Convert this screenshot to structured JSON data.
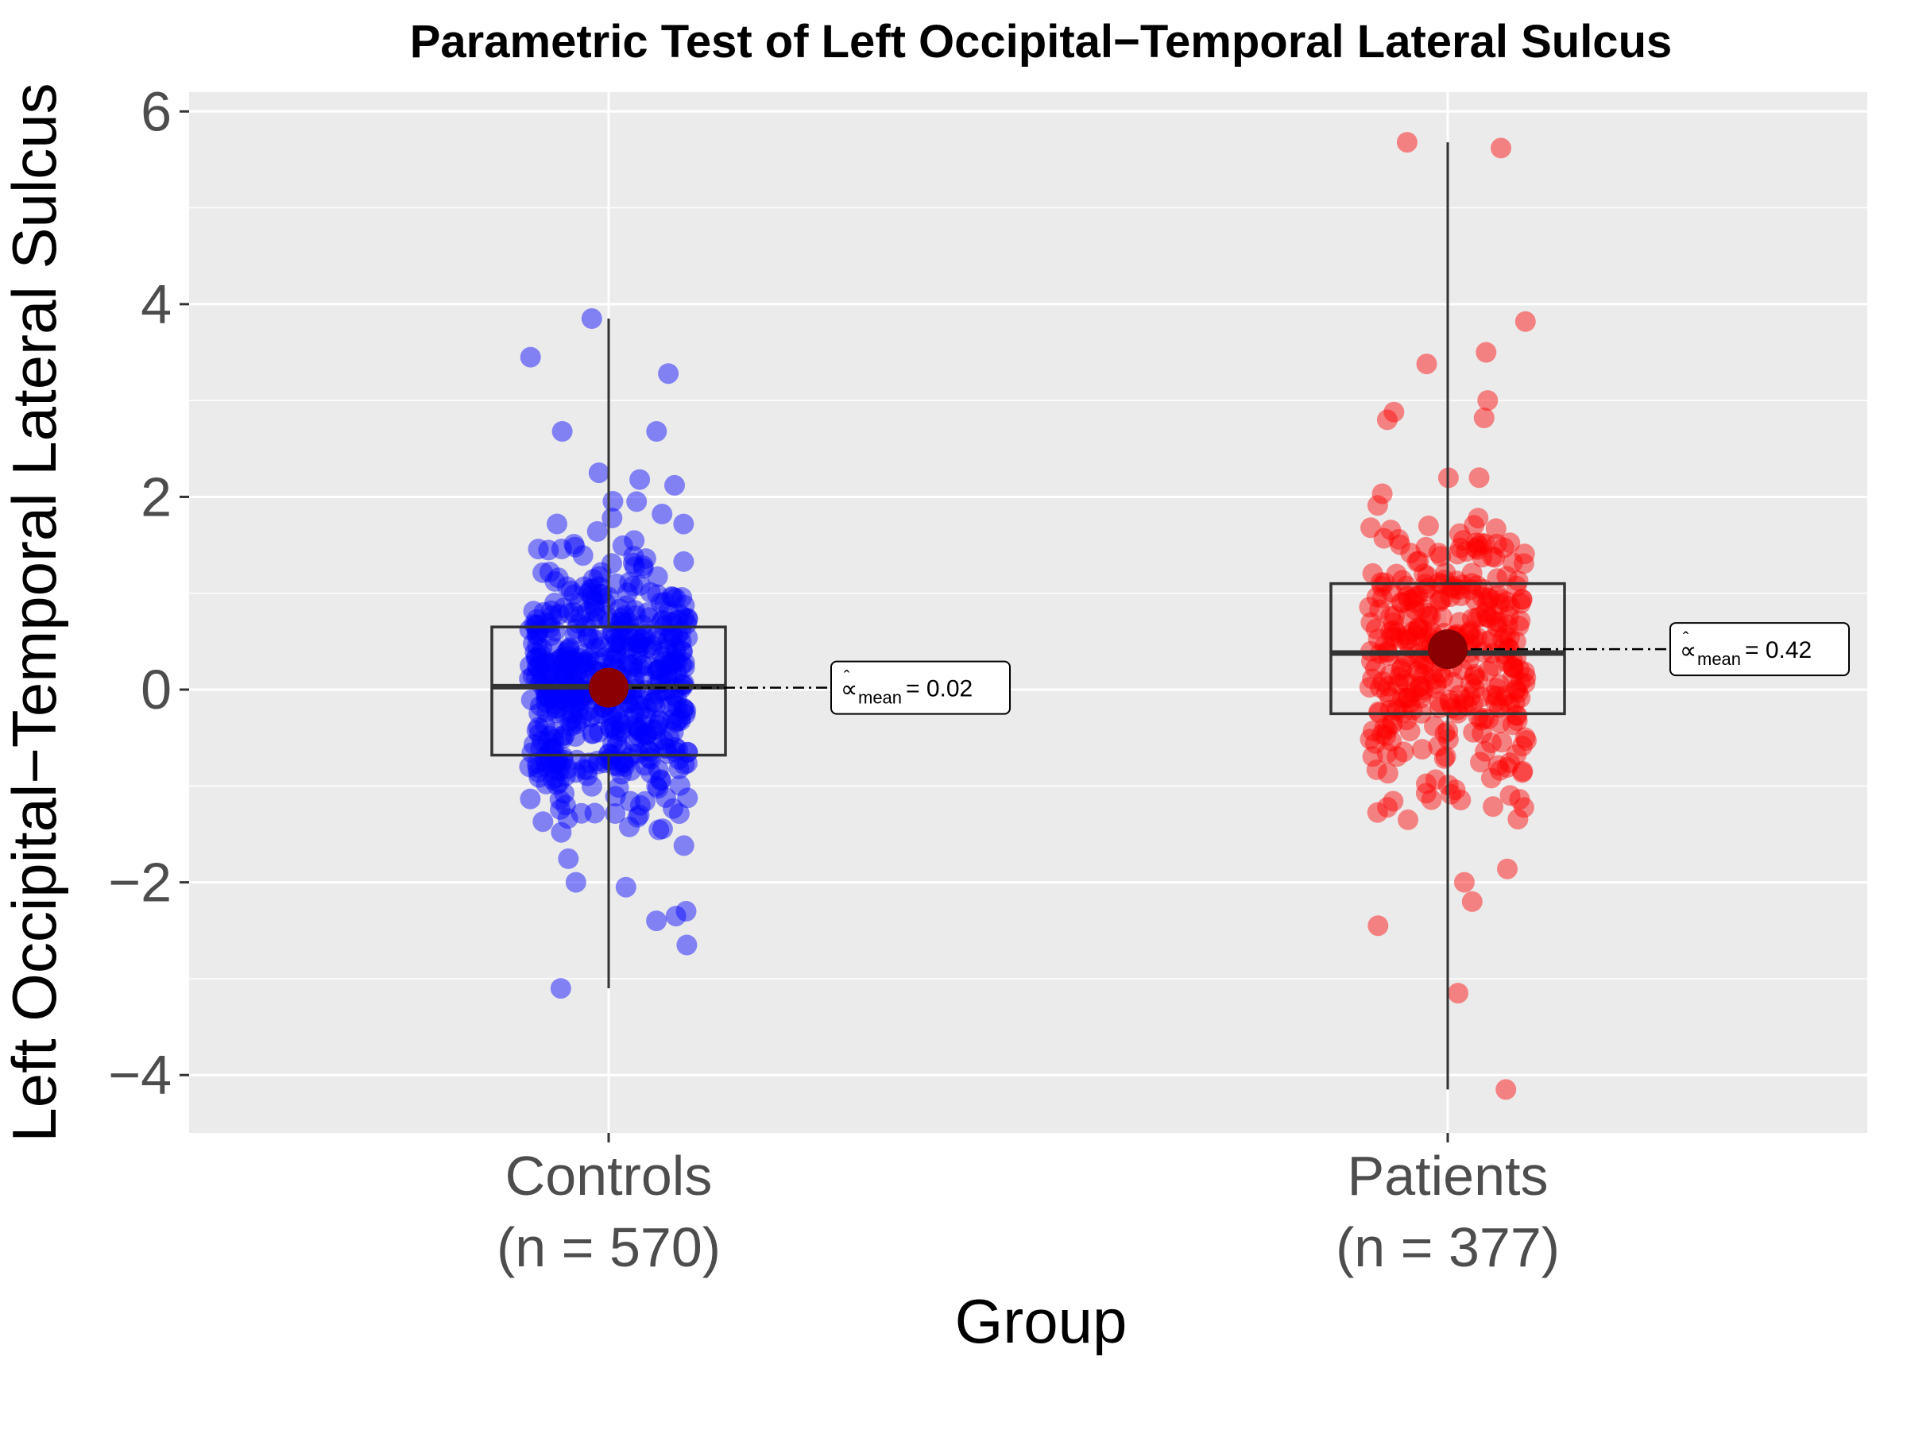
{
  "chart_data": {
    "type": "scatter",
    "title": "Parametric Test of Left Occipital−Temporal Lateral Sulcus",
    "xlabel": "Group",
    "ylabel": "Left Occipital−Temporal Lateral Sulcus",
    "ylim": [
      -4.6,
      6.2
    ],
    "yticks": [
      -4,
      -2,
      0,
      2,
      4,
      6
    ],
    "ytick_labels": [
      "−4",
      "−2",
      "0",
      "2",
      "4",
      "6"
    ],
    "grid": true,
    "legend": "none",
    "groups": [
      {
        "name": "Controls",
        "tick_label_line1": "Controls",
        "tick_label_line2": "(n = 570)",
        "n": 570,
        "color": "#0000ff",
        "mean": 0.02,
        "mean_label_prefix": "mean",
        "mean_label_value": "= 0.02",
        "box": {
          "q1": -0.68,
          "median": 0.03,
          "q3": 0.65,
          "whisker_low": -3.1,
          "whisker_high": 3.85
        },
        "highlight_points": [
          3.85,
          3.45,
          3.28,
          2.68,
          2.68,
          2.25,
          2.18,
          2.12,
          -2.0,
          -2.05,
          -2.3,
          -2.35,
          -2.4,
          -2.65,
          -3.1
        ]
      },
      {
        "name": "Patients",
        "tick_label_line1": "Patients",
        "tick_label_line2": "(n = 377)",
        "n": 377,
        "color": "#ff0000",
        "mean": 0.42,
        "mean_label_prefix": "mean",
        "mean_label_value": "= 0.42",
        "box": {
          "q1": -0.25,
          "median": 0.38,
          "q3": 1.1,
          "whisker_low": -4.15,
          "whisker_high": 5.68
        },
        "highlight_points": [
          5.68,
          5.62,
          3.82,
          3.5,
          3.38,
          3.0,
          2.88,
          2.82,
          2.8,
          2.2,
          -2.0,
          -2.2,
          -2.45,
          -3.15,
          -4.15
        ]
      }
    ]
  },
  "colors": {
    "panel_bg": "#ebebeb",
    "grid": "#ffffff",
    "mean_point": "#8b0000",
    "box_stroke": "#333333"
  }
}
